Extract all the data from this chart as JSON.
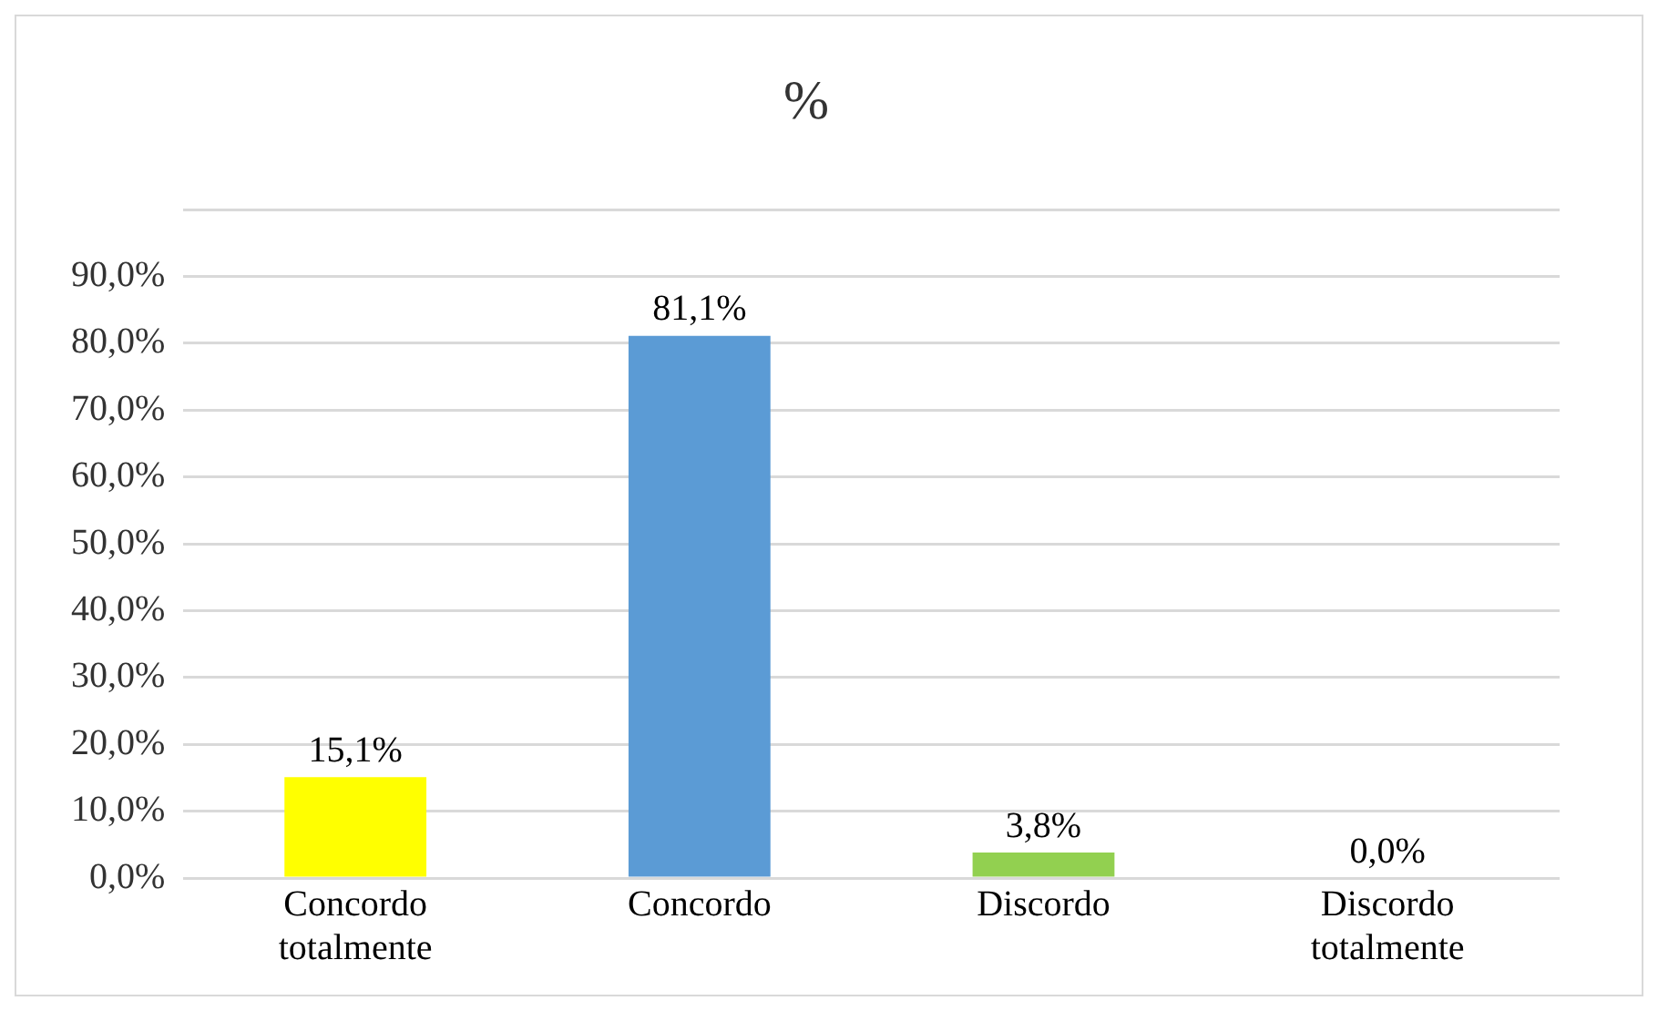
{
  "chart_data": {
    "type": "bar",
    "title": "%",
    "categories": [
      "Concordo totalmente",
      "Concordo",
      "Discordo",
      "Discordo totalmente"
    ],
    "values": [
      15.1,
      81.1,
      3.8,
      0.0
    ],
    "colors": [
      "#ffff00",
      "#5b9bd5",
      "#92d050",
      "#c59600"
    ],
    "value_labels": [
      "15,1%",
      "81,1%",
      "3,8%",
      "0,0%"
    ],
    "ylim": [
      0,
      100
    ],
    "yticks": [
      {
        "value": 0,
        "label": "0,0%"
      },
      {
        "value": 10,
        "label": "10,0%"
      },
      {
        "value": 20,
        "label": "20,0%"
      },
      {
        "value": 30,
        "label": "30,0%"
      },
      {
        "value": 40,
        "label": "40,0%"
      },
      {
        "value": 50,
        "label": "50,0%"
      },
      {
        "value": 60,
        "label": "60,0%"
      },
      {
        "value": 70,
        "label": "70,0%"
      },
      {
        "value": 80,
        "label": "80,0%"
      },
      {
        "value": 90,
        "label": "90,0%"
      },
      {
        "value": 100,
        "label": null
      }
    ],
    "grid": "y",
    "legend": false
  }
}
